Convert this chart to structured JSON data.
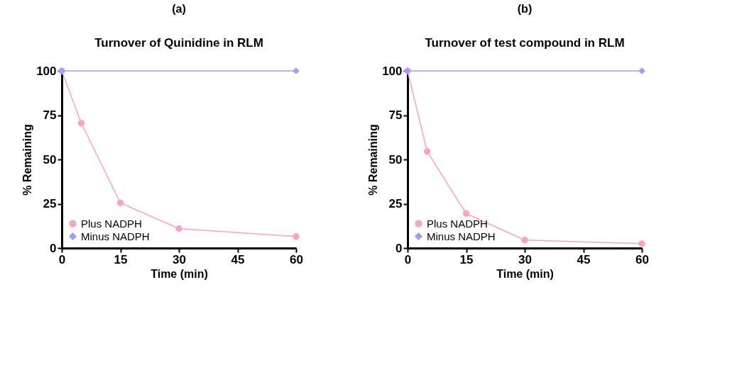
{
  "chart_data": [
    {
      "type": "line",
      "title": "(a)",
      "subtitle": "Turnover of Quinidine in RLM",
      "xlabel": "Time (min)",
      "ylabel": "% Remaining",
      "x": [
        0,
        5,
        15,
        30,
        60
      ],
      "xlim": [
        0,
        60
      ],
      "xticks": [
        0,
        15,
        30,
        45,
        60
      ],
      "ylim": [
        0,
        100
      ],
      "yticks": [
        0,
        25,
        50,
        75,
        100
      ],
      "grid": false,
      "legend": "bottom left",
      "series": [
        {
          "name": "Plus NADPH",
          "color": "#f9a3c8",
          "marker": "circle",
          "values": [
            100,
            70.5,
            25.5,
            11,
            6.5
          ]
        },
        {
          "name": "Minus NADPH",
          "color": "#9d9dfa",
          "marker": "diamond",
          "values": [
            100,
            null,
            null,
            null,
            100
          ]
        }
      ]
    },
    {
      "type": "line",
      "title": "(b)",
      "subtitle": "Turnover of test compound in RLM",
      "xlabel": "Time (min)",
      "ylabel": "% Remaining",
      "x": [
        0,
        5,
        15,
        30,
        60
      ],
      "xlim": [
        0,
        60
      ],
      "xticks": [
        0,
        15,
        30,
        45,
        60
      ],
      "ylim": [
        0,
        100
      ],
      "yticks": [
        0,
        25,
        50,
        75,
        100
      ],
      "grid": false,
      "legend": "bottom left",
      "series": [
        {
          "name": "Plus NADPH",
          "color": "#f9a3c8",
          "marker": "circle",
          "values": [
            100,
            54.5,
            19.5,
            4.5,
            2.5
          ]
        },
        {
          "name": "Minus NADPH",
          "color": "#9d9dfa",
          "marker": "diamond",
          "values": [
            100,
            null,
            null,
            null,
            100
          ]
        }
      ]
    }
  ]
}
